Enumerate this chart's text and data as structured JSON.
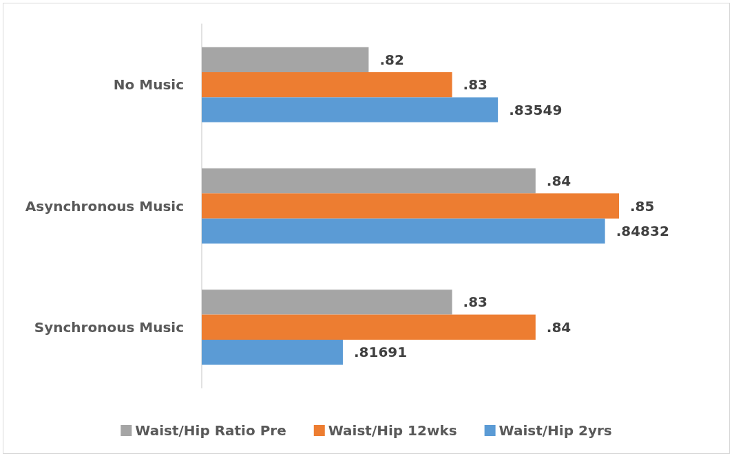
{
  "chart_data": {
    "type": "bar",
    "orientation": "horizontal",
    "categories": [
      "No Music",
      "Asynchronous Music",
      "Synchronous Music"
    ],
    "series": [
      {
        "name": "Waist/Hip Ratio Pre",
        "color": "#a5a5a5",
        "values": [
          0.82,
          0.84,
          0.83
        ],
        "value_labels": [
          ".82",
          ".84",
          ".83"
        ]
      },
      {
        "name": "Waist/Hip 12wks",
        "color": "#ed7d31",
        "values": [
          0.83,
          0.85,
          0.84
        ],
        "value_labels": [
          ".83",
          ".85",
          ".84"
        ]
      },
      {
        "name": "Waist/Hip 2yrs",
        "color": "#5b9bd5",
        "values": [
          0.83549,
          0.84832,
          0.81691
        ],
        "value_labels": [
          ".83549",
          ".84832",
          ".81691"
        ]
      }
    ],
    "xlim": [
      0.8,
      0.85
    ],
    "tick_labels": "y",
    "grid": false,
    "legend": "bottom"
  }
}
